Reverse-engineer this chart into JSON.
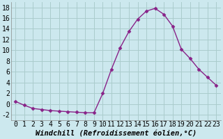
{
  "x": [
    0,
    1,
    2,
    3,
    4,
    5,
    6,
    7,
    8,
    9,
    10,
    11,
    12,
    13,
    14,
    15,
    16,
    17,
    18,
    19,
    20,
    21,
    22,
    23
  ],
  "y": [
    0.5,
    -0.2,
    -0.8,
    -1.0,
    -1.2,
    -1.3,
    -1.4,
    -1.5,
    -1.6,
    -1.6,
    2.0,
    6.5,
    10.5,
    13.5,
    15.8,
    17.3,
    17.8,
    16.7,
    14.5,
    10.2,
    8.5,
    6.5,
    5.0,
    3.5
  ],
  "line_color": "#882288",
  "marker": "D",
  "marker_size": 2.5,
  "bg_color": "#cce8ee",
  "grid_color": "#aacccc",
  "xlabel": "Windchill (Refroidissement éolien,°C)",
  "ylim": [
    -3,
    19
  ],
  "yticks": [
    -2,
    0,
    2,
    4,
    6,
    8,
    10,
    12,
    14,
    16,
    18
  ],
  "xticks": [
    0,
    1,
    2,
    3,
    4,
    5,
    6,
    7,
    8,
    9,
    10,
    11,
    12,
    13,
    14,
    15,
    16,
    17,
    18,
    19,
    20,
    21,
    22,
    23
  ],
  "xlabel_fontsize": 7.5,
  "tick_fontsize": 7,
  "line_width": 1.0
}
